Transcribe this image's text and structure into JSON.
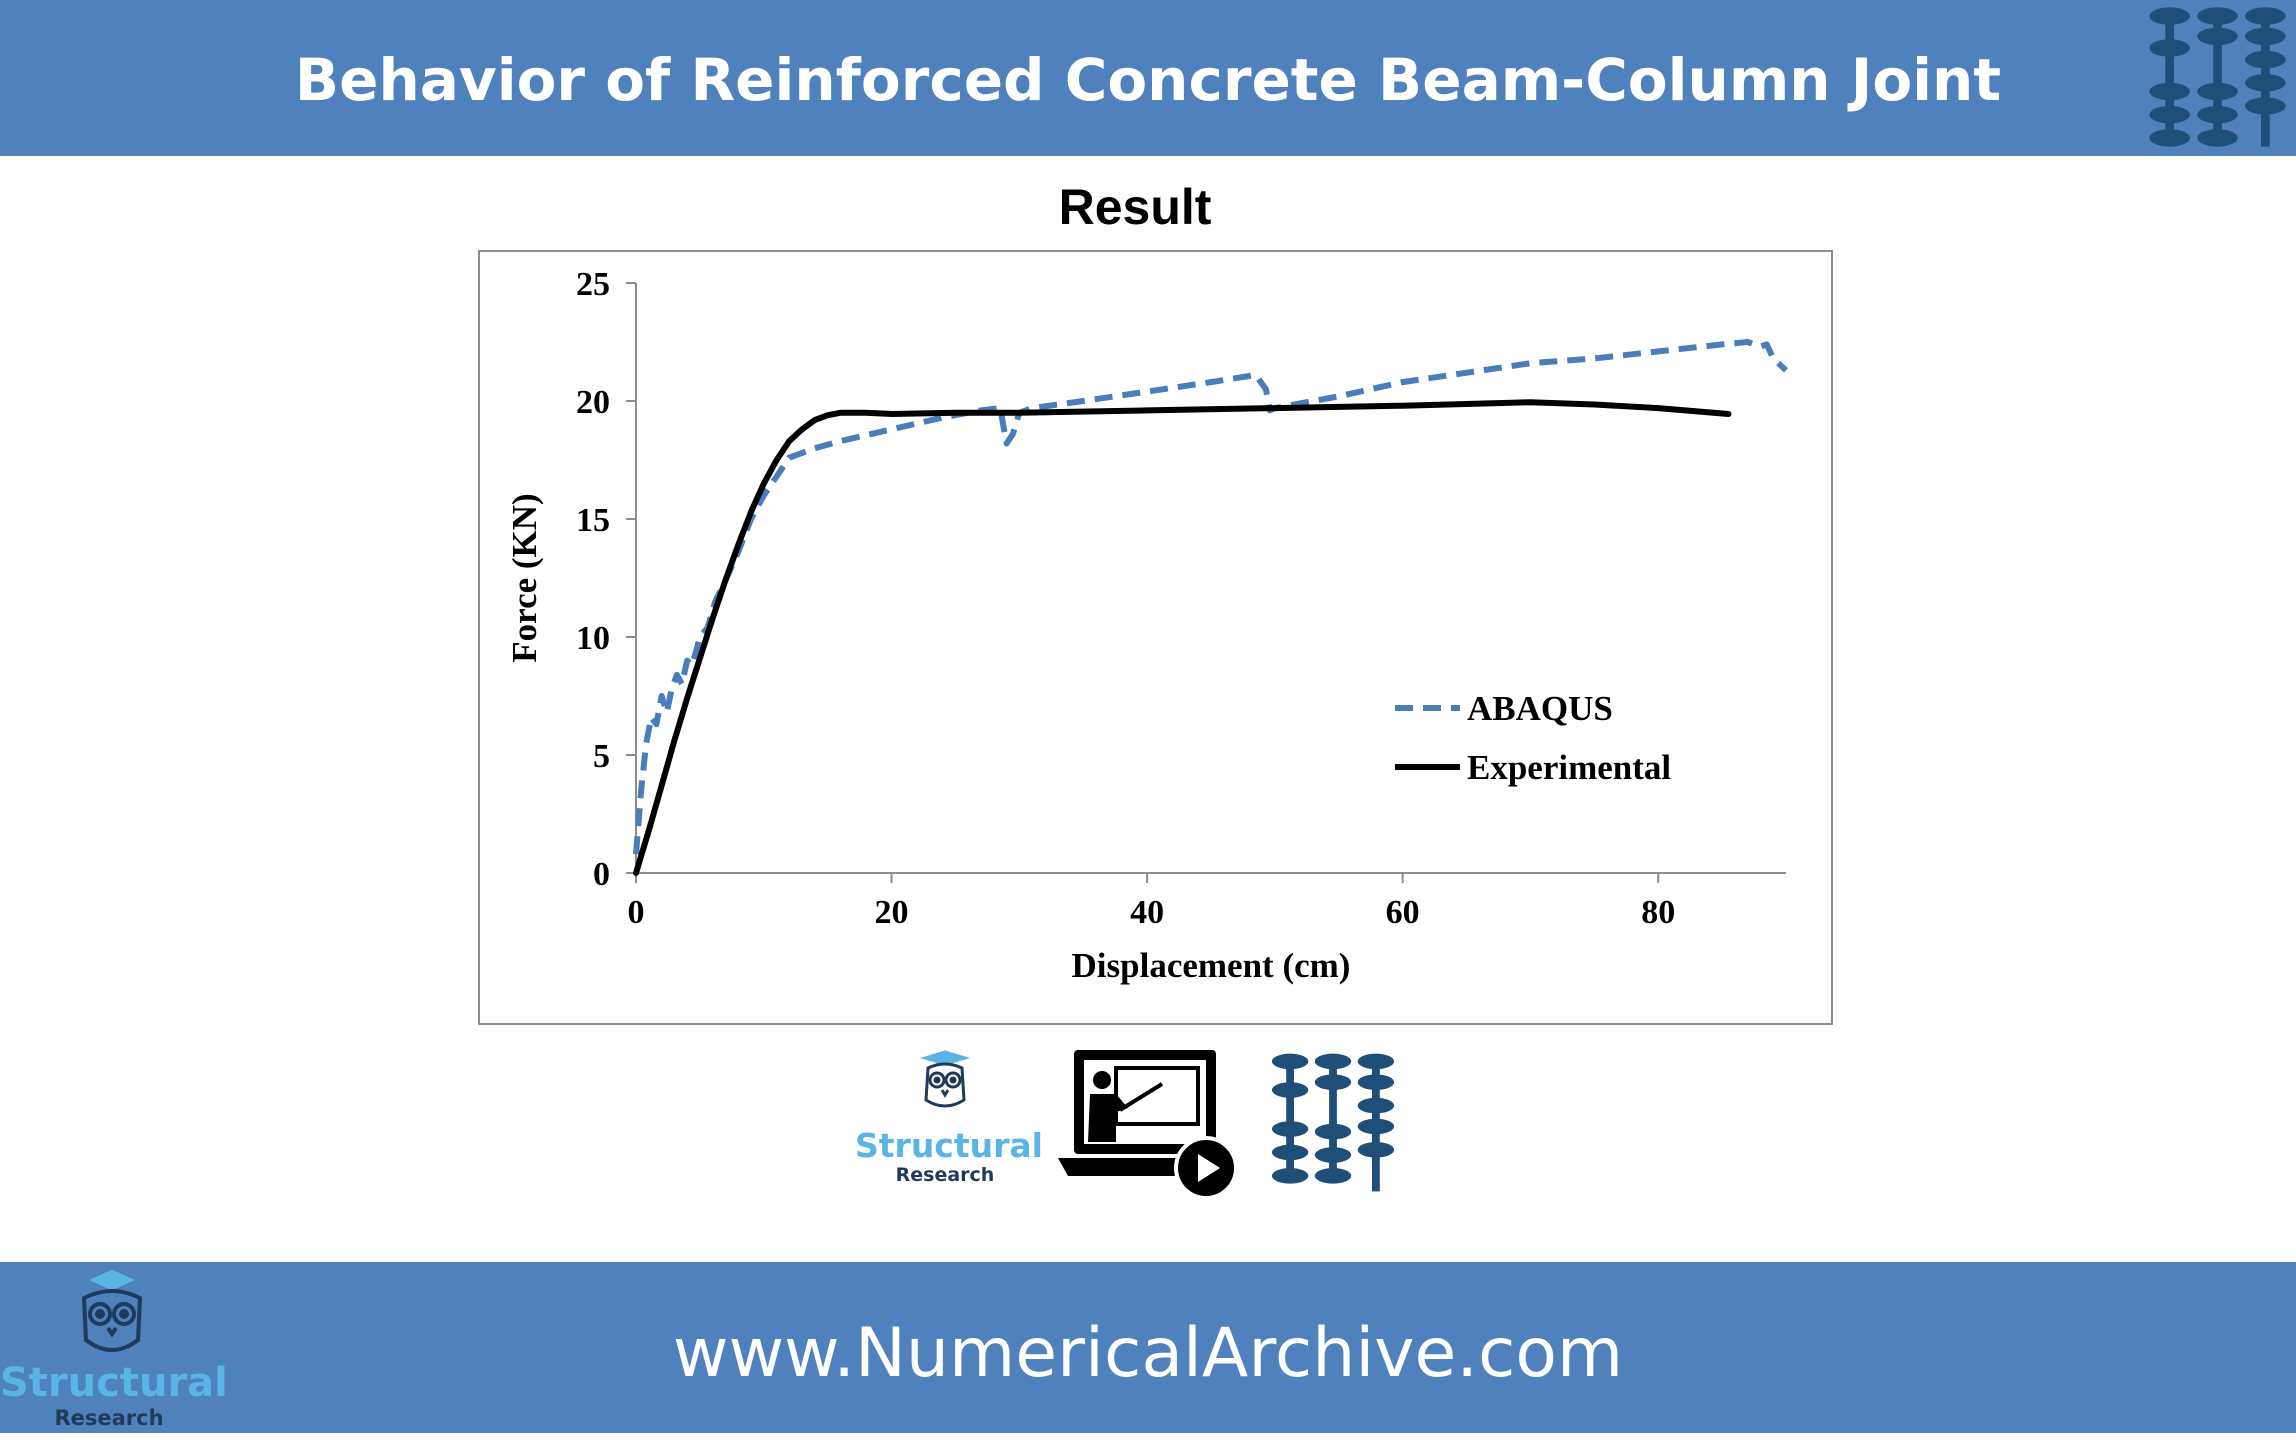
{
  "header": {
    "title": "Behavior of Reinforced Concrete Beam-Column Joint",
    "logo_icon": "abacus-logo-icon"
  },
  "colors": {
    "bar": "#4f81bd",
    "abaqus": "#4a7ebb",
    "experimental": "#000000",
    "logo_dark": "#1f4e79",
    "brand_light": "#5ab4e6"
  },
  "result_title": "Result",
  "chart_data": {
    "type": "line",
    "xlabel": "Displacement  (cm)",
    "ylabel": "Force (KN)",
    "xlim": [
      0,
      90
    ],
    "ylim": [
      0,
      25
    ],
    "xticks": [
      "0",
      "20",
      "40",
      "60",
      "80"
    ],
    "yticks": [
      "0",
      "5",
      "10",
      "15",
      "20",
      "25"
    ],
    "grid": false,
    "legend_position": "lower-right",
    "series": [
      {
        "name": "ABAQUS",
        "style": "dashed",
        "x": [
          0,
          0.4,
          0.8,
          1.2,
          1.6,
          2.0,
          2.4,
          2.8,
          3.2,
          3.6,
          4.0,
          4.4,
          5.0,
          5.6,
          6.2,
          7.0,
          8.0,
          9.0,
          10.0,
          11.0,
          12.0,
          13.0,
          14.0,
          16.0,
          20.0,
          24.0,
          27.0,
          28.5,
          29.0,
          29.5,
          30.0,
          31.0,
          35.0,
          40.0,
          45.0,
          48.5,
          49.3,
          49.6,
          50.0,
          55.0,
          60.0,
          65.0,
          70.0,
          75.0,
          80.0,
          85.0,
          87.0,
          88.0,
          88.5,
          89.0,
          90.0
        ],
        "y": [
          0.8,
          3.5,
          5.5,
          6.6,
          6.3,
          7.5,
          6.8,
          7.8,
          8.4,
          8.0,
          9.0,
          8.8,
          10.0,
          10.4,
          11.5,
          12.4,
          13.6,
          15.0,
          16.0,
          16.8,
          17.6,
          17.8,
          18.0,
          18.3,
          18.8,
          19.3,
          19.6,
          19.7,
          18.2,
          18.6,
          19.5,
          19.7,
          20.0,
          20.4,
          20.8,
          21.1,
          20.5,
          19.6,
          19.7,
          20.2,
          20.8,
          21.2,
          21.6,
          21.8,
          22.1,
          22.4,
          22.5,
          22.3,
          22.4,
          21.8,
          21.3
        ]
      },
      {
        "name": "Experimental",
        "style": "solid",
        "x": [
          0,
          1,
          2,
          3,
          4,
          5,
          6,
          7,
          8,
          9,
          10,
          11,
          12,
          13,
          14,
          15,
          16,
          17,
          18,
          20,
          25,
          30,
          40,
          50,
          60,
          70,
          75,
          80,
          85.5
        ],
        "y": [
          0,
          1.8,
          3.7,
          5.6,
          7.4,
          9.1,
          10.8,
          12.4,
          13.9,
          15.3,
          16.5,
          17.5,
          18.3,
          18.8,
          19.2,
          19.4,
          19.5,
          19.5,
          19.5,
          19.45,
          19.5,
          19.5,
          19.6,
          19.7,
          19.8,
          19.95,
          19.85,
          19.7,
          19.45
        ]
      }
    ]
  },
  "icons": {
    "owl_brand": {
      "icon": "owl-graduate-icon",
      "name": "Structural",
      "sub": "Research"
    },
    "video": {
      "icon": "video-lecture-icon"
    },
    "logo": {
      "icon": "abacus-logo-icon"
    }
  },
  "footer": {
    "url": "www.NumericalArchive.com",
    "brand_name": "Structural",
    "brand_sub": "Research"
  }
}
